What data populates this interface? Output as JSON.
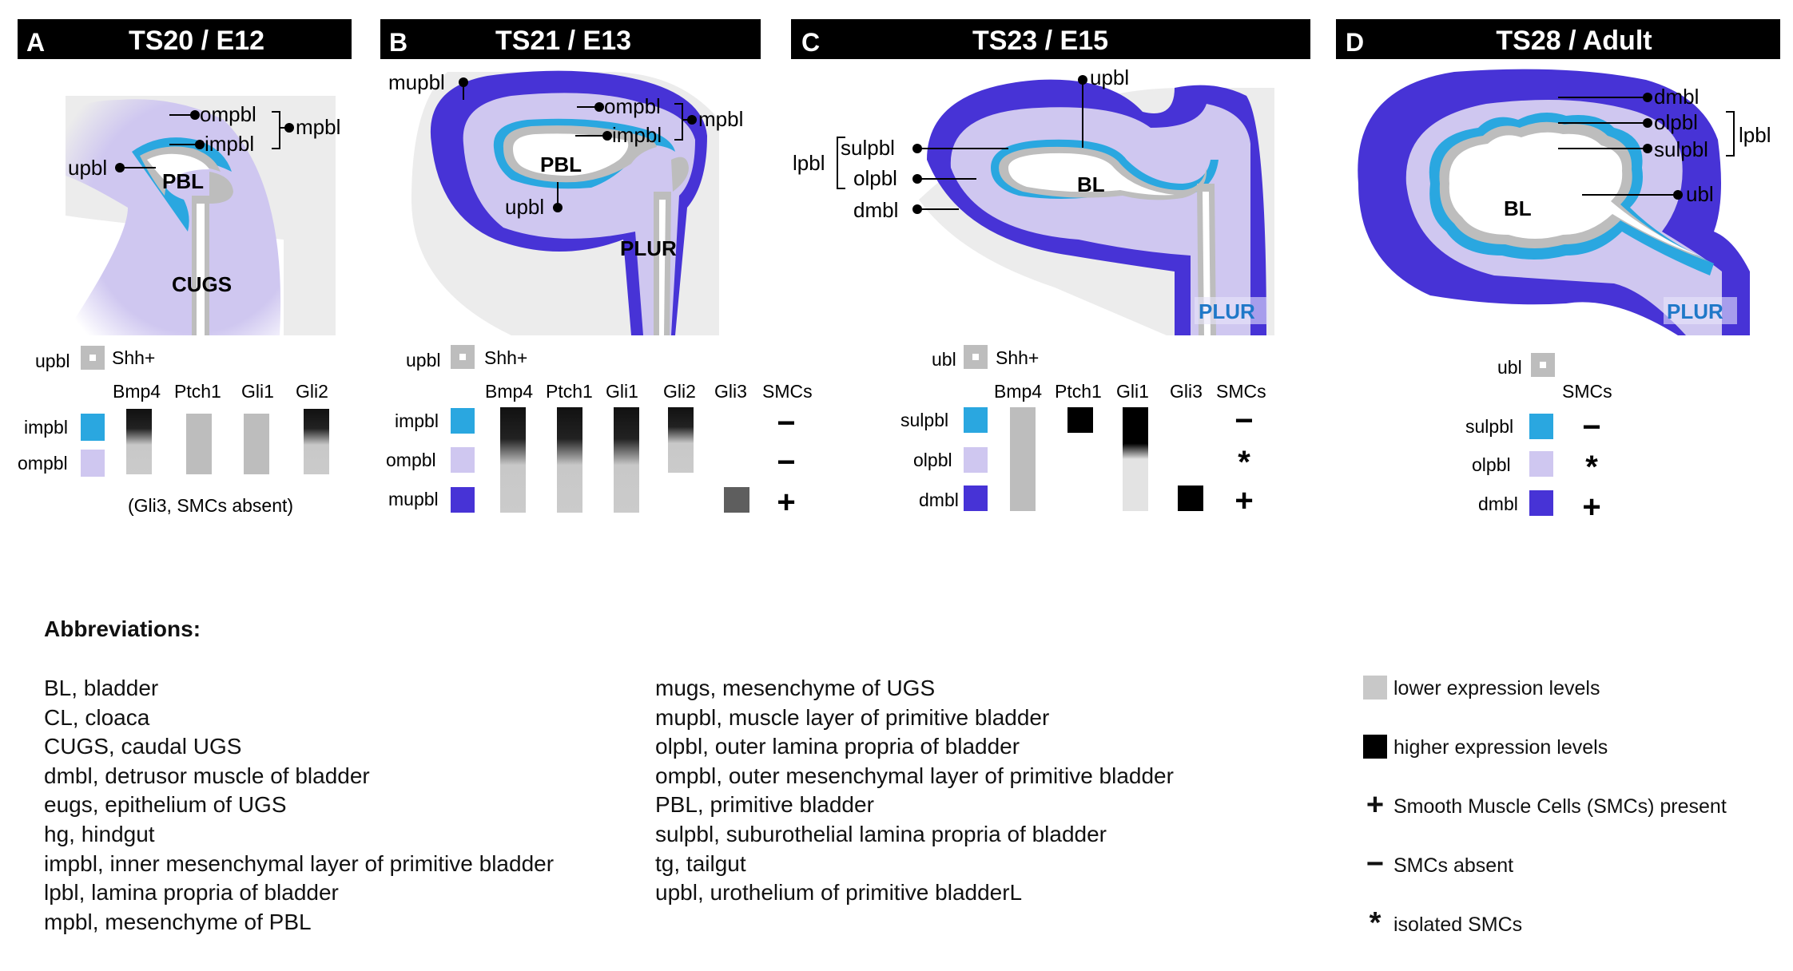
{
  "colors": {
    "upbl": "#bdbdbd",
    "inner_layer": "#2aa7e0",
    "outer_layer": "#cfc7f0",
    "muscle_layer": "#4733d6",
    "low_expression": "#c8c8c8",
    "high_expression": "#000000",
    "header_bg": "#000000",
    "plur_text": "#1f78c8"
  },
  "panels": [
    {
      "letter": "A",
      "title": "TS20 / E12",
      "labels": {
        "ompbl": "ompbl",
        "impbl": "impbl",
        "mpbl": "mpbl",
        "upbl": "upbl",
        "pbl": "PBL",
        "cugs": "CUGS"
      },
      "table": {
        "upbl_row": {
          "label": "upbl",
          "marker": "Shh+"
        },
        "columns": [
          "Bmp4",
          "Ptch1",
          "Gli1",
          "Gli2"
        ],
        "rows": [
          {
            "label": "impbl",
            "color_key": "inner_layer"
          },
          {
            "label": "ompbl",
            "color_key": "outer_layer"
          }
        ],
        "note": "(Gli3, SMCs absent)"
      }
    },
    {
      "letter": "B",
      "title": "TS21 / E13",
      "labels": {
        "mupbl": "mupbl",
        "ompbl": "ompbl",
        "impbl": "impbl",
        "mpbl": "mpbl",
        "pbl": "PBL",
        "upbl": "upbl",
        "plur": "PLUR"
      },
      "table": {
        "upbl_row": {
          "label": "upbl",
          "marker": "Shh+"
        },
        "columns": [
          "Bmp4",
          "Ptch1",
          "Gli1",
          "Gli2",
          "Gli3",
          "SMCs"
        ],
        "rows": [
          {
            "label": "impbl",
            "color_key": "inner_layer",
            "smc": "−"
          },
          {
            "label": "ompbl",
            "color_key": "outer_layer",
            "smc": "−"
          },
          {
            "label": "mupbl",
            "color_key": "muscle_layer",
            "smc": "+"
          }
        ]
      }
    },
    {
      "letter": "C",
      "title": "TS23 / E15",
      "labels": {
        "upbl": "upbl",
        "lpbl": "lpbl",
        "sulpbl": "sulpbl",
        "olpbl": "olpbl",
        "dmbl": "dmbl",
        "bl": "BL",
        "plur": "PLUR"
      },
      "table": {
        "upbl_row": {
          "label": "ubl",
          "marker": "Shh+"
        },
        "columns": [
          "Bmp4",
          "Ptch1",
          "Gli1",
          "Gli3",
          "SMCs"
        ],
        "rows": [
          {
            "label": "sulpbl",
            "color_key": "inner_layer",
            "smc": "−"
          },
          {
            "label": "olpbl",
            "color_key": "outer_layer",
            "smc": "*"
          },
          {
            "label": "dmbl",
            "color_key": "muscle_layer",
            "smc": "+"
          }
        ]
      }
    },
    {
      "letter": "D",
      "title": "TS28 / Adult",
      "labels": {
        "dmbl": "dmbl",
        "olpbl": "olpbl",
        "sulpbl": "sulpbl",
        "lpbl": "lpbl",
        "ubl": "ubl",
        "bl": "BL",
        "plur": "PLUR"
      },
      "table": {
        "upbl_row": {
          "label": "ubl",
          "marker": ""
        },
        "columns": [
          "SMCs"
        ],
        "rows": [
          {
            "label": "sulpbl",
            "color_key": "inner_layer",
            "smc": "−"
          },
          {
            "label": "olpbl",
            "color_key": "outer_layer",
            "smc": "*"
          },
          {
            "label": "dmbl",
            "color_key": "muscle_layer",
            "smc": "+"
          }
        ]
      }
    }
  ],
  "abbreviations": {
    "title": "Abbreviations:",
    "column_1": [
      "BL, bladder",
      "CL, cloaca",
      "CUGS, caudal UGS",
      "dmbl, detrusor muscle of bladder",
      "eugs, epithelium of UGS",
      "hg, hindgut",
      "impbl, inner mesenchymal layer of primitive bladder",
      "lpbl, lamina propria of bladder",
      "mpbl, mesenchyme of PBL"
    ],
    "column_2": [
      "mugs, mesenchyme of UGS",
      "mupbl, muscle layer of primitive bladder",
      "olpbl, outer lamina propria of bladder",
      "ompbl, outer mesenchymal layer of primitive bladder",
      "PBL, primitive bladder",
      "sulpbl, suburothelial lamina propria of bladder",
      "tg, tailgut",
      "upbl, urothelium of primitive bladderL"
    ]
  },
  "legend": [
    {
      "kind": "swatch",
      "color_key": "low_expression",
      "label": "lower expression levels"
    },
    {
      "kind": "swatch",
      "color_key": "high_expression",
      "label": "higher expression levels"
    },
    {
      "kind": "symbol",
      "symbol": "+",
      "label": "Smooth Muscle Cells (SMCs) present"
    },
    {
      "kind": "symbol",
      "symbol": "−",
      "label": "SMCs absent"
    },
    {
      "kind": "symbol",
      "symbol": "*",
      "label": "isolated SMCs"
    }
  ]
}
